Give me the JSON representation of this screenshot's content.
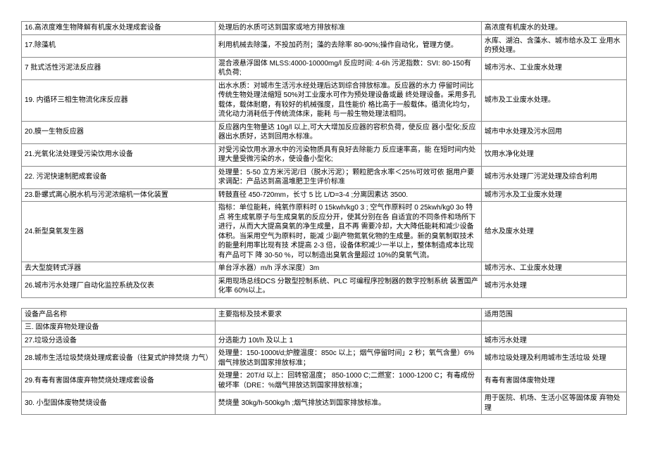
{
  "table1": {
    "rows": [
      [
        "16.高浓度难生物降解有机废水处理成套设备",
        "处理后的水质可达到国家或地方排放标准",
        "高浓度有机废水的处理。"
      ],
      [
        "17.除藻机",
        "利用机械去除藻，不投加药剂；藻的去除率 80-90%;操作自动化，管理方便。",
        "水库、湖泊、含藻水、城市给水及工 业用水的预处理。"
      ],
      [
        "7 批式活性污泥法反应器",
        "混合液悬浮固体 MLSS:4000-10000mg/l 反应时间: 4-6h 污泥指数：SVI: 80-150有机负荷;",
        "城市污水、工业废水处理"
      ],
      [
        "19. 内循环三相生物流化床反应器",
        "出水水质：对城市生活污水经处理后达到综合排放标准。反应器的水力 停留时间比传统生物处理法缩短 50%对工业废水可作为预处理设备或最 终处理设备。采用多孔载体，载体耐磨，有较好的机械强度，且性能价 格比高于一般载体。循流化均匀，流化动力消耗低于传统流体床，能耗 与一般生物处理法相同。",
        "城市及工业废水处理。"
      ],
      [
        "20.膜一生物反应器",
        "反应器内生物量达 10g/l 以上,可大大增加反应器的容积负荷，使反应 器小型化;反应器出水质好，达到回用水标准。",
        "城市中水处理及污水回用"
      ],
      [
        "21.光氧化法处理受污染饮用水设备",
        "对受污染饮用水源水中的污染物质具有良好去除能力 反应速率高，能 在短时间内处理大量受微污染的水，使设备小型化;",
        "饮用水净化处理"
      ],
      [
        "22. 污泥快速制肥成套设备",
        "处理量：5-50 立方米污泥/日（脱水污泥）；颗粒肥含水率＜25%可效可依 据用户要求调配：产品达到高温堆肥卫生评价标准",
        "城市污水处理厂污泥处理及综合利用"
      ],
      [
        "23.卧螺式离心脱水机与污泥浓缩机一体化装置",
        "转鼓直径 450-720mm，长寸 5 比 L/D=3-4 ;分离因素达 3500.",
        "城市污水及工业废水处理"
      ],
      [
        "24.新型臭氧发生器",
        "指标：单位能耗，纯氧作原料时 0 15kwh/kg0 3 ; 空气作原料时 0 25kwh/kg0 3o 特点 将生成氧原子与生成臭氧的反应分开，使其分别在各 自适宜的不同条件和场所下进行，从而大大提高臭氧的净生成量，且不再 需要冷却，大大降低能耗和减少设备体积。当采用空气为原料时，能减 少副产物氮氧化物的生成量。新的臭氧制取技术的能量利用率比现有技 术提高 2-3 倍，设备体积减少一半以上，整体制造成本比现有产品可下 降 30-50 %，可以制造出臭氧含量超过 10%的臭氧气流。",
        "给水及废水处理"
      ],
      [
        "去大型旋转式浮器",
        "单台浮水器）m/h 浮水深度）3m",
        "城市污水、工业废水处理"
      ],
      [
        "26.城市污水处理厂自动化监控系统及仪表",
        "采用现场总线DCS 分散型控制系统、PLC 可编程序控制器的数字控制系统 装置国产化率 60%以上。",
        "城市污水处理"
      ]
    ]
  },
  "table2": {
    "rows": [
      [
        "设备产品名称",
        "主要指标及技术要求",
        "适用范围"
      ],
      [
        "三. 固体废弃物处理设备",
        "",
        ""
      ],
      [
        "27.垃圾分选设备",
        "分选能力 10t/h 及以上 1",
        "城市污水处理"
      ],
      [
        "28.城市生活垃圾焚烧处理成套设备（往复式炉排焚烧 力气）",
        "处理量：150-1000t/d;炉膛温度：850c 以上；烟气停留时间」2 秒；氧气含量）6%烟气排放达到国家排放标准；",
        "城市垃圾处理及利用城市生活垃圾 处理"
      ],
      [
        "29.有毒有害固体废弃物焚烧处理成套设备",
        "处理量：20T/d 以上：回转窑温度； 850-1000 C;二燃室：1000-1200 C；有毒成份破坏率（DRE：%烟气排放达到国家排放标准；",
        "有毒有害固体废物处理"
      ],
      [
        "30. 小型固体废物焚烧设备",
        "焚烧量 30kg/h-500kg/h ;烟气排放达到国家排放标准。",
        "用于医院、机场、生活小区等固体废 弃物处理"
      ]
    ]
  }
}
